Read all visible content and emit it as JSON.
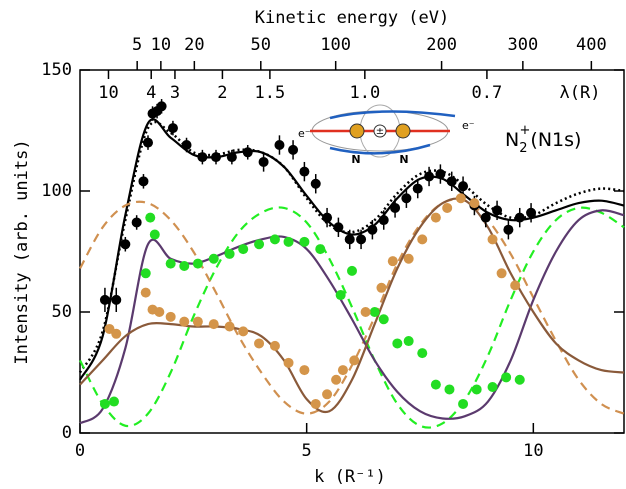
{
  "chart_data": {
    "type": "scatter",
    "title": "Kinetic energy (eV)",
    "xlabel": "k (R⁻¹)",
    "ylabel": "Intensity (arb. units)",
    "xlim": [
      0,
      12
    ],
    "ylim": [
      0,
      150
    ],
    "xticks": [
      0,
      5,
      10
    ],
    "yticks": [
      0,
      50,
      100,
      150
    ],
    "energy_ticks": [
      5,
      10,
      20,
      50,
      100,
      200,
      300,
      400
    ],
    "wavelength_label": "λ(R)",
    "wavelength_ticks": [
      10,
      4,
      3,
      2,
      1.5,
      {
        "value": 1,
        "label": "1.0"
      },
      0.7
    ],
    "annotation": {
      "base": "N",
      "sub": "2",
      "sup": "+",
      "rest": "(N1s)",
      "electron_left": "e⁻",
      "electron_right": "e⁻",
      "atom_left": "N",
      "atom_right": "N",
      "center": "±"
    },
    "series": [
      {
        "style": "points",
        "color": "#000000",
        "x": [
          0.55,
          0.8,
          1.0,
          1.25,
          1.4,
          1.5,
          1.6,
          1.7,
          1.8,
          2.05,
          2.35,
          2.7,
          3.0,
          3.35,
          3.7,
          4.05,
          4.4,
          4.7,
          4.95,
          5.2,
          5.45,
          5.7,
          5.95,
          6.2,
          6.45,
          6.7,
          6.95,
          7.2,
          7.45,
          7.7,
          7.95,
          8.2,
          8.45,
          8.7,
          8.95,
          9.2,
          9.45,
          9.7,
          9.95
        ],
        "values": [
          55,
          55,
          78,
          87,
          104,
          120,
          132,
          133,
          135,
          126,
          119,
          114,
          114,
          114,
          116,
          112,
          119,
          117,
          108,
          103,
          89,
          85,
          80,
          80,
          84,
          88,
          93,
          97,
          101,
          106,
          107,
          104,
          102,
          94,
          89,
          92,
          84,
          89,
          91
        ],
        "errors": [
          5,
          5,
          3,
          3,
          3,
          3,
          3,
          3,
          3,
          3,
          3,
          3,
          3,
          3,
          3,
          4,
          4,
          4,
          4,
          4,
          4,
          4,
          4,
          4,
          4,
          4,
          4,
          4,
          4,
          4,
          4,
          4,
          4,
          4,
          4,
          4,
          4,
          4,
          4
        ]
      },
      {
        "style": "points",
        "color": "#22dd22",
        "x": [
          0.55,
          0.75,
          1.45,
          1.55,
          1.65,
          2.0,
          2.3,
          2.6,
          2.95,
          3.3,
          3.6,
          3.95,
          4.3,
          4.6,
          4.95,
          5.3,
          5.75,
          6.0,
          6.5,
          6.7,
          7.0,
          7.25,
          7.55,
          7.85,
          8.15,
          8.45,
          8.75,
          9.1,
          9.4,
          9.7
        ],
        "values": [
          12,
          13,
          66,
          89,
          82,
          70,
          69,
          70,
          72,
          74,
          76,
          78,
          80,
          79,
          79,
          76,
          57,
          67,
          50,
          47,
          37,
          38,
          33,
          20,
          18,
          12,
          18,
          19,
          23,
          22
        ]
      },
      {
        "style": "points",
        "color": "#d4954a",
        "x": [
          0.65,
          0.8,
          1.45,
          1.6,
          1.75,
          2.0,
          2.3,
          2.6,
          2.95,
          3.3,
          3.6,
          3.95,
          4.3,
          4.6,
          4.95,
          5.2,
          5.45,
          5.65,
          5.8,
          6.05,
          6.3,
          6.65,
          6.9,
          7.25,
          7.55,
          7.85,
          8.1,
          8.4,
          8.7,
          9.1,
          9.3,
          9.6
        ],
        "values": [
          43,
          41,
          58,
          51,
          50,
          48,
          46,
          46,
          45,
          44,
          42,
          37,
          36,
          29,
          26,
          12,
          16,
          22,
          26,
          30,
          50,
          60,
          71,
          72,
          80,
          89,
          93,
          97,
          95,
          80,
          66,
          61
        ]
      },
      {
        "style": "solid",
        "color": "#000000",
        "x": [
          0,
          0.5,
          1,
          1.5,
          2,
          2.5,
          3,
          3.5,
          4,
          4.5,
          5,
          5.5,
          6,
          6.5,
          7,
          7.5,
          8,
          8.5,
          9,
          9.5,
          10,
          10.5,
          11,
          11.5,
          12
        ],
        "values": [
          22,
          40,
          90,
          128,
          122,
          115,
          114,
          116,
          116,
          110,
          98,
          87,
          82,
          86,
          97,
          105,
          105,
          98,
          91,
          88,
          89,
          92,
          95,
          96,
          94
        ]
      },
      {
        "style": "dotted",
        "color": "#000000",
        "x": [
          0,
          0.5,
          1,
          1.5,
          2,
          2.5,
          3,
          3.5,
          4,
          4.5,
          5,
          5.5,
          6,
          6.5,
          7,
          7.5,
          8,
          8.5,
          9,
          9.5,
          10,
          10.5,
          11,
          11.5,
          12
        ],
        "values": [
          25,
          42,
          88,
          126,
          124,
          116,
          115,
          117,
          116,
          110,
          97,
          86,
          83,
          88,
          99,
          107,
          108,
          102,
          94,
          89,
          90,
          95,
          99,
          101,
          100
        ]
      },
      {
        "style": "dashed",
        "color": "#22ee22",
        "x": [
          0,
          0.5,
          1,
          1.5,
          2,
          2.5,
          3,
          3.5,
          4,
          4.5,
          5,
          5.5,
          6,
          6.5,
          7,
          7.5,
          8,
          8.5,
          9,
          9.5,
          10,
          10.5,
          11,
          11.5,
          12
        ],
        "values": [
          30,
          12,
          3,
          8,
          25,
          48,
          68,
          83,
          91,
          93,
          87,
          72,
          52,
          30,
          12,
          3,
          4,
          14,
          32,
          55,
          75,
          88,
          93,
          91,
          85
        ]
      },
      {
        "style": "dashed",
        "color": "#d09050",
        "x": [
          0,
          0.5,
          1,
          1.5,
          2,
          2.5,
          3,
          3.5,
          4,
          4.5,
          5,
          5.5,
          6,
          6.5,
          7,
          7.5,
          8,
          8.5,
          9,
          9.5,
          10,
          10.5,
          11,
          11.5,
          12
        ],
        "values": [
          68,
          85,
          94,
          95,
          88,
          75,
          58,
          40,
          25,
          13,
          8,
          13,
          28,
          48,
          70,
          86,
          95,
          96,
          88,
          74,
          56,
          38,
          22,
          12,
          8
        ]
      },
      {
        "style": "solid",
        "color": "#5b3a6e",
        "x": [
          0,
          0.5,
          1,
          1.5,
          2,
          2.5,
          3,
          3.5,
          4,
          4.5,
          5,
          5.5,
          6,
          6.5,
          7,
          7.5,
          8,
          8.5,
          9,
          9.5,
          10,
          10.5,
          11,
          11.5,
          12
        ],
        "values": [
          4,
          10,
          35,
          78,
          72,
          70,
          73,
          77,
          80,
          81,
          76,
          63,
          47,
          30,
          17,
          9,
          6,
          7,
          13,
          30,
          55,
          75,
          88,
          92,
          90
        ]
      },
      {
        "style": "solid",
        "color": "#8a5a3a",
        "x": [
          0,
          0.5,
          1,
          1.5,
          2,
          2.5,
          3,
          3.5,
          4,
          4.5,
          5,
          5.5,
          6,
          6.5,
          7,
          7.5,
          8,
          8.5,
          9,
          9.5,
          10,
          10.5,
          11,
          11.5,
          12
        ],
        "values": [
          20,
          30,
          40,
          45,
          45,
          44,
          44,
          43,
          40,
          30,
          14,
          9,
          22,
          45,
          68,
          85,
          95,
          96,
          85,
          66,
          50,
          37,
          30,
          26,
          25
        ]
      }
    ]
  }
}
